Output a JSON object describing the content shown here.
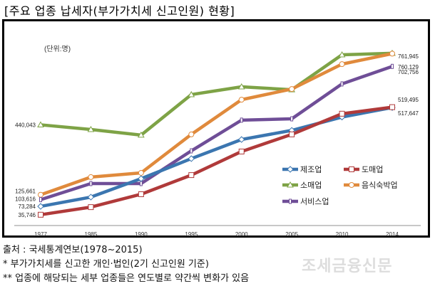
{
  "title": "[주요 업종 납세자(부가가치세 신고인원) 현황]",
  "footnotes": {
    "source": "출처 : 국세통계연보(1978~2015)",
    "note1": "*  부가가치세를 신고한 개인·법인(2기 신고인원 기준)",
    "note2": "** 업종에 해당되는 세부 업종들은 연도별로 약간씩 변화가 있음"
  },
  "watermark": "조세금융신문",
  "chart_data": {
    "type": "line",
    "title": "주요 업종 납세자(부가가치세 신고인원) 현황",
    "unit_label": "(단위:명)",
    "xlabel": "",
    "ylabel": "",
    "x": [
      "1977",
      "1985",
      "1990",
      "1995",
      "2000",
      "2005",
      "2010",
      "2014"
    ],
    "ylim": [
      0,
      800000
    ],
    "grid": false,
    "legend_position": "right-middle",
    "series": [
      {
        "name": "제조업",
        "color": "#3b76b0",
        "marker": "diamond",
        "values": [
          73284,
          115000,
          198000,
          288000,
          374000,
          415000,
          475000,
          517647
        ],
        "labels": {
          "start": "73,284",
          "end": "517,647"
        }
      },
      {
        "name": "도매업",
        "color": "#b03a3a",
        "marker": "square",
        "values": [
          35746,
          70000,
          128000,
          214000,
          320000,
          397000,
          490000,
          519495
        ],
        "labels": {
          "start": "35,746",
          "end": "519,495"
        }
      },
      {
        "name": "소매업",
        "color": "#7ea346",
        "marker": "triangle",
        "values": [
          440043,
          419000,
          394000,
          576000,
          611000,
          598000,
          755000,
          761945
        ],
        "labels": {
          "start": "440,043",
          "end": "761,945"
        }
      },
      {
        "name": "음식숙박업",
        "color": "#e08a3c",
        "marker": "circle",
        "values": [
          125661,
          205000,
          224000,
          397000,
          553000,
          601000,
          713000,
          760129
        ],
        "labels": {
          "start": "125,661",
          "end": "760,129"
        }
      },
      {
        "name": "서비스업",
        "color": "#6f4e97",
        "marker": "bar",
        "values": [
          103616,
          176000,
          176000,
          323000,
          461000,
          467000,
          624000,
          702756
        ],
        "labels": {
          "start": "103,616",
          "end": "702,756"
        }
      }
    ]
  }
}
